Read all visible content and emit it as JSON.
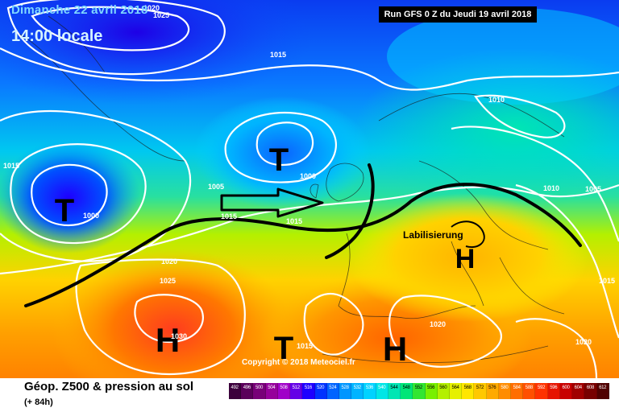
{
  "header": {
    "date": "Dimanche 22 avril 2018",
    "time": "14:00 locale",
    "run": "Run GFS 0 Z du Jeudi 19 avril 2018"
  },
  "footer": {
    "title": "Géop. Z500 & pression au sol",
    "subtitle": "(+ 84h)",
    "copyright": "Copyright © 2018 Meteociel.fr"
  },
  "map_labels": {
    "low_1": "T",
    "low_2": "T",
    "low_3": "T",
    "high_1": "H",
    "high_2": "H",
    "high_3": "H",
    "annotation": "Labilisierung",
    "isobar_1020_top": "1020",
    "isobar_1025_top": "1025",
    "isobar_1015_top": "1015",
    "isobar_1010_ne": "1010",
    "isobar_1015_w": "1015",
    "isobar_1000_c": "1000",
    "isobar_1000_w": "1000",
    "isobar_1005_c": "1005",
    "isobar_1015_c": "1015",
    "isobar_1010_e": "1010",
    "isobar_1005_e": "1005",
    "isobar_1020_sw": "1020",
    "isobar_1025_sw": "1025",
    "isobar_1030": "1030",
    "isobar_1015_s": "1015",
    "isobar_1020_s": "1020",
    "isobar_1015_se": "1015",
    "isobar_1020_se": "1020",
    "isobar_1015_far_e": "1015"
  },
  "legend": {
    "labels": [
      "492",
      "496",
      "500",
      "504",
      "508",
      "512",
      "516",
      "520",
      "524",
      "528",
      "532",
      "536",
      "540",
      "544",
      "548",
      "552",
      "556",
      "560",
      "564",
      "568",
      "572",
      "576",
      "580",
      "584",
      "588",
      "592",
      "596",
      "600",
      "604",
      "608",
      "612"
    ],
    "colors": [
      "#3c003c",
      "#5a005a",
      "#780078",
      "#96009b",
      "#a000c8",
      "#6400e6",
      "#1e00ff",
      "#0032ff",
      "#0064ff",
      "#0096ff",
      "#00b4ff",
      "#00d2ff",
      "#00e6e6",
      "#00e6b4",
      "#00e678",
      "#32e632",
      "#78f000",
      "#b4f000",
      "#e6f000",
      "#ffe600",
      "#ffc800",
      "#ffaa00",
      "#ff8c00",
      "#ff6e00",
      "#ff5000",
      "#ff3200",
      "#e61400",
      "#c80000",
      "#a00000",
      "#780000",
      "#500000"
    ]
  },
  "colors": {
    "jet_stream": "#000000",
    "isobars": "#ffffff"
  }
}
